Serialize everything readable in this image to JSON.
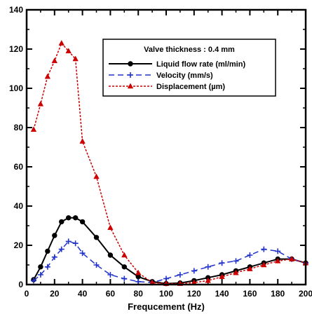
{
  "chart_data": {
    "type": "line",
    "title": "",
    "xlabel": "Frequcement (Hz)",
    "ylabel": "",
    "xlim": [
      0,
      200
    ],
    "ylim": [
      0,
      140
    ],
    "x_ticks": [
      0,
      20,
      40,
      60,
      80,
      100,
      120,
      140,
      160,
      180,
      200
    ],
    "y_ticks": [
      0,
      20,
      40,
      60,
      80,
      100,
      120,
      140
    ],
    "grid": false,
    "legend_position": "top-right",
    "legend_title": "Valve thickness : 0.4 mm",
    "series": [
      {
        "name": "Liquid flow rate (ml/min)",
        "color": "#000000",
        "line_style": "solid",
        "marker": "circle",
        "x": [
          5,
          10,
          15,
          20,
          25,
          30,
          35,
          40,
          50,
          60,
          70,
          80,
          90,
          100,
          110,
          120,
          130,
          140,
          150,
          160,
          170,
          180,
          190,
          200
        ],
        "values": [
          2.5,
          9,
          17,
          25,
          32,
          34,
          34,
          32,
          24,
          15,
          9,
          4,
          1.5,
          0.5,
          0.8,
          2,
          3.5,
          5,
          7,
          9,
          11,
          13,
          13,
          11
        ]
      },
      {
        "name": "Velocity (mm/s)",
        "color": "#2233cc",
        "line_style": "dashed",
        "marker": "plus",
        "x": [
          5,
          10,
          15,
          20,
          25,
          30,
          35,
          40,
          50,
          60,
          70,
          80,
          90,
          100,
          110,
          120,
          130,
          140,
          150,
          160,
          170,
          180,
          190,
          200
        ],
        "values": [
          2,
          5,
          9,
          14,
          18,
          22,
          21,
          16,
          10,
          5,
          3,
          1.5,
          1,
          3,
          5,
          7,
          9,
          11,
          12,
          15,
          18,
          17,
          13,
          11
        ]
      },
      {
        "name": "Displacement (µm)",
        "color": "#cc0000",
        "line_style": "dotted",
        "marker": "triangle",
        "x": [
          5,
          10,
          15,
          20,
          25,
          30,
          35,
          40,
          50,
          60,
          70,
          80,
          90,
          100,
          110,
          120,
          130,
          140,
          150,
          160,
          170,
          180,
          190,
          200
        ],
        "values": [
          79,
          92,
          106,
          114,
          123,
          119,
          115,
          73,
          55,
          29,
          15,
          6,
          1,
          0.5,
          0.5,
          1,
          2,
          4,
          6,
          8,
          10,
          12,
          13,
          11
        ]
      }
    ]
  }
}
